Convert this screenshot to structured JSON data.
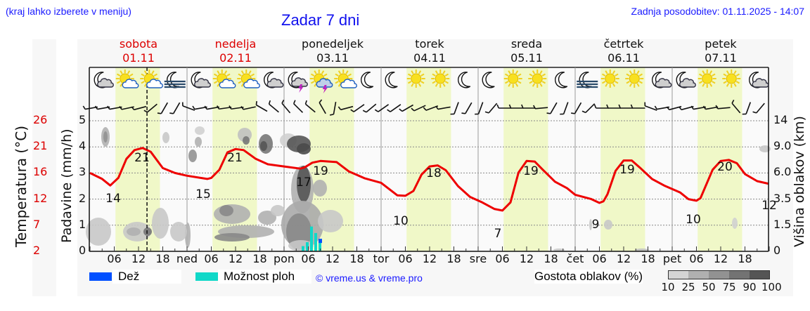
{
  "header": {
    "location_hint": "(kraj lahko izberete v meniju)",
    "title": "Zadar 7 dni",
    "last_update": "Zadnja posodobitev: 01.11.2025 - 14:07"
  },
  "days": [
    {
      "name": "sobota",
      "date": "01.11",
      "weekend": true,
      "icons": [
        "moon-cloud",
        "sun-cloud",
        "sun-cloud",
        "moon-fog"
      ]
    },
    {
      "name": "nedelja",
      "date": "02.11",
      "weekend": true,
      "icons": [
        "moon-cloud",
        "sun-cloud",
        "sun-cloud",
        "moon-cloud"
      ]
    },
    {
      "name": "ponedeljek",
      "date": "03.11",
      "weekend": false,
      "icons": [
        "moon-thunder",
        "sun-thunder",
        "sun-cloud",
        "moon"
      ]
    },
    {
      "name": "torek",
      "date": "04.11",
      "weekend": false,
      "icons": [
        "moon",
        "sun",
        "sun",
        "moon"
      ]
    },
    {
      "name": "sreda",
      "date": "05.11",
      "weekend": false,
      "icons": [
        "moon",
        "sun",
        "sun",
        "moon"
      ]
    },
    {
      "name": "četrtek",
      "date": "06.11",
      "weekend": false,
      "icons": [
        "moon-fog",
        "sun",
        "sun",
        "moon-cloud"
      ]
    },
    {
      "name": "petek",
      "date": "07.11",
      "weekend": false,
      "icons": [
        "moon-cloud",
        "sun",
        "sun",
        "moon-cloud"
      ]
    }
  ],
  "axes": {
    "left_temp_label": "Temperatura (°C)",
    "left_temp_ticks": [
      "26",
      "21",
      "16",
      "12",
      "7",
      "2"
    ],
    "left_precip_label": "Padavine (mm/h)",
    "left_precip_ticks": [
      "5",
      "4",
      "3",
      "2",
      "1",
      "0"
    ],
    "right_cloud_label": "Višina oblakov (km)",
    "right_cloud_ticks": [
      "14",
      "9.0",
      "6.0",
      "3.5",
      "1.5",
      "0"
    ],
    "x_ticks": [
      "06",
      "12",
      "18",
      "ned",
      "06",
      "12",
      "18",
      "pon",
      "06",
      "12",
      "18",
      "tor",
      "06",
      "12",
      "18",
      "sre",
      "06",
      "12",
      "18",
      "čet",
      "06",
      "12",
      "18",
      "pet",
      "06",
      "12",
      "18"
    ]
  },
  "legend": {
    "rain_label": "Dež",
    "rain_color": "#0050ff",
    "showers_label": "Možnost ploh",
    "showers_color": "#10d8c8",
    "credit": "© vreme.us & vreme.pro",
    "cloud_density_label": "Gostota oblakov (%)",
    "cloud_density_ticks": [
      "10",
      "25",
      "50",
      "75",
      "90",
      "100"
    ],
    "cloud_density_colors": [
      "#d4d4d4",
      "#b0b0b0",
      "#929292",
      "#737373",
      "#555555"
    ]
  },
  "colors": {
    "temp_line": "#ee0000",
    "daylight_band": "#f0f8c8",
    "plot_bg": "#fafafa"
  },
  "chart_data": {
    "type": "line",
    "title": "Zadar 7 dni",
    "xlabel": "",
    "ylabel": "Temperatura (°C)",
    "ylim": [
      2,
      26
    ],
    "x": [
      "Sat 00",
      "Sat 06",
      "Sat 13",
      "Sun 00",
      "Sun 05",
      "Sun 12",
      "Sun 18",
      "Mon 05",
      "Mon 08",
      "Mon 14",
      "Tue 06",
      "Tue 12",
      "Wed 06",
      "Wed 12",
      "Thu 06",
      "Thu 12",
      "Fri 06",
      "Fri 14",
      "Fri 24"
    ],
    "series": [
      {
        "name": "Temperatura",
        "values": [
          16.5,
          14,
          21,
          16.8,
          15,
          21,
          17.8,
          17,
          19,
          18.5,
          10,
          18,
          7,
          19,
          9,
          19,
          10,
          20,
          12
        ]
      },
      {
        "name": "Možnost ploh (mm/h)",
        "x": [
          "Mon 05",
          "Mon 06",
          "Mon 07",
          "Mon 08",
          "Mon 09"
        ],
        "values": [
          0.2,
          0.35,
          0.95,
          0.7,
          0.35
        ]
      },
      {
        "name": "Dež (mm/h)",
        "x": [
          "Mon 09"
        ],
        "values": [
          0.15
        ]
      }
    ],
    "annotations": {
      "max_labels": [
        {
          "x": "Sat 13",
          "v": 21
        },
        {
          "x": "Sun 12",
          "v": 21
        },
        {
          "x": "Mon 08",
          "v": 19
        },
        {
          "x": "Tue 12",
          "v": 18
        },
        {
          "x": "Wed 12",
          "v": 19
        },
        {
          "x": "Thu 12",
          "v": 19
        },
        {
          "x": "Fri 14",
          "v": 20
        }
      ],
      "min_labels": [
        {
          "x": "Sat 06",
          "v": 14
        },
        {
          "x": "Sun 05",
          "v": 15
        },
        {
          "x": "Mon 05",
          "v": 17
        },
        {
          "x": "Tue 06",
          "v": 10
        },
        {
          "x": "Wed 06",
          "v": 7
        },
        {
          "x": "Thu 06",
          "v": 9
        },
        {
          "x": "Fri 06",
          "v": 10
        },
        {
          "x": "Fri 24",
          "v": 12
        }
      ],
      "now_marker": "Sat 14:07"
    },
    "grid": true,
    "legend_position": "bottom"
  }
}
